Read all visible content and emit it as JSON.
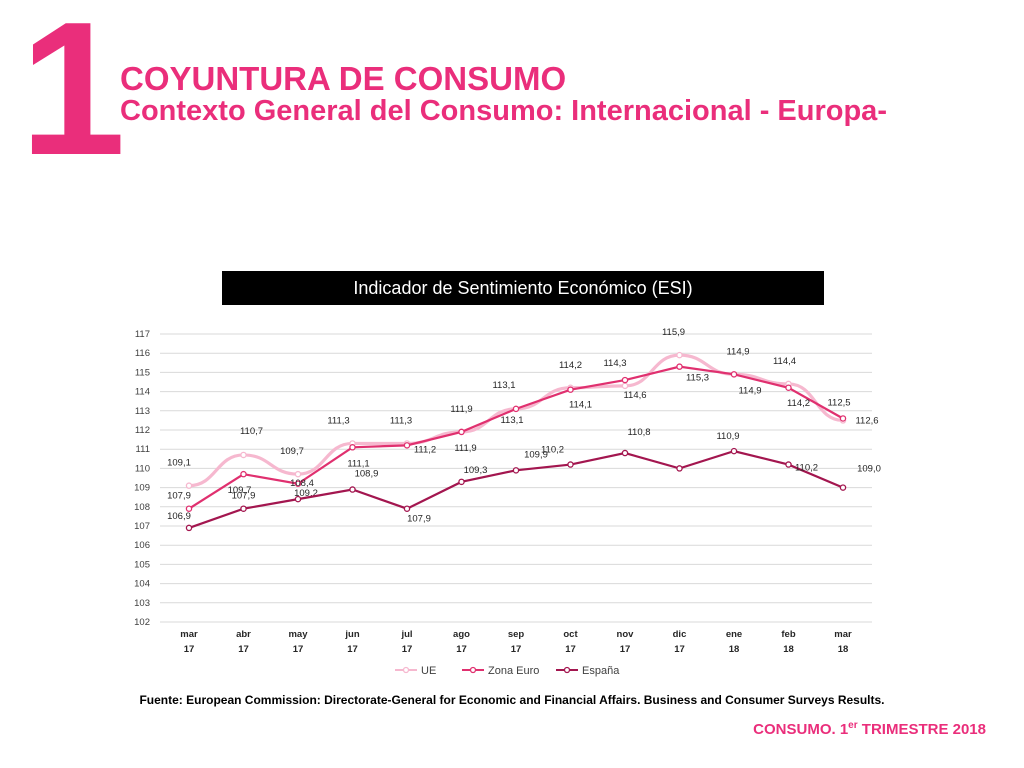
{
  "slide": {
    "number": "1",
    "title": "COYUNTURA DE CONSUMO",
    "subtitle": "Contexto General del Consumo: Internacional - Europa-",
    "source": "Fuente:  European Commission: Directorate-General for Economic and Financial Affairs.  Business and Consumer Surveys Results.",
    "footer_prefix": "CONSUMO. 1",
    "footer_sup": "er",
    "footer_suffix": " TRIMESTRE 2018"
  },
  "chart_data": {
    "type": "line",
    "title": "Indicador de Sentimiento Económico (ESI)",
    "categories": [
      [
        "mar",
        "17"
      ],
      [
        "abr",
        "17"
      ],
      [
        "may",
        "17"
      ],
      [
        "jun",
        "17"
      ],
      [
        "jul",
        "17"
      ],
      [
        "ago",
        "17"
      ],
      [
        "sep",
        "17"
      ],
      [
        "oct",
        "17"
      ],
      [
        "nov",
        "17"
      ],
      [
        "dic",
        "17"
      ],
      [
        "ene",
        "18"
      ],
      [
        "feb",
        "18"
      ],
      [
        "mar",
        "18"
      ]
    ],
    "ylim": [
      102,
      117
    ],
    "yticks": [
      102,
      103,
      104,
      105,
      106,
      107,
      108,
      109,
      110,
      111,
      112,
      113,
      114,
      115,
      116,
      117
    ],
    "grid": true,
    "legend_position": "bottom",
    "series": [
      {
        "name": "UE",
        "color": "#f6b8cf",
        "values": [
          109.1,
          110.7,
          109.7,
          111.3,
          111.3,
          111.9,
          113.1,
          114.2,
          114.3,
          115.9,
          114.9,
          114.4,
          112.5
        ],
        "labels": [
          "109,1",
          "110,7",
          "109,7",
          "111,3",
          "111,3",
          "111,9",
          "113,1",
          "114,2",
          "114,3",
          "115,9",
          "114,9",
          "114,4",
          "112,5"
        ]
      },
      {
        "name": "Zona Euro",
        "color": "#e0306f",
        "values": [
          107.9,
          109.7,
          109.2,
          111.1,
          111.2,
          111.9,
          113.1,
          114.1,
          114.6,
          115.3,
          114.9,
          114.2,
          112.6
        ],
        "labels": [
          "107,9",
          "109,7",
          "109,2",
          "111,1",
          "111,2",
          "111,9",
          "113,1",
          "114,1",
          "114,6",
          "115,3",
          "114,9",
          "114,2",
          "112,6"
        ]
      },
      {
        "name": "España",
        "color": "#a3164f",
        "values": [
          106.9,
          107.9,
          108.4,
          108.9,
          107.9,
          109.3,
          109.9,
          110.2,
          110.8,
          110.0,
          110.9,
          110.2,
          109.0
        ],
        "labels": [
          "106,9",
          "107,9",
          "108,4",
          "108,9",
          "107,9",
          "109,3",
          "109,9",
          "110,2",
          "110,8",
          "",
          "110,9",
          "110,2",
          "109,0"
        ]
      }
    ]
  }
}
